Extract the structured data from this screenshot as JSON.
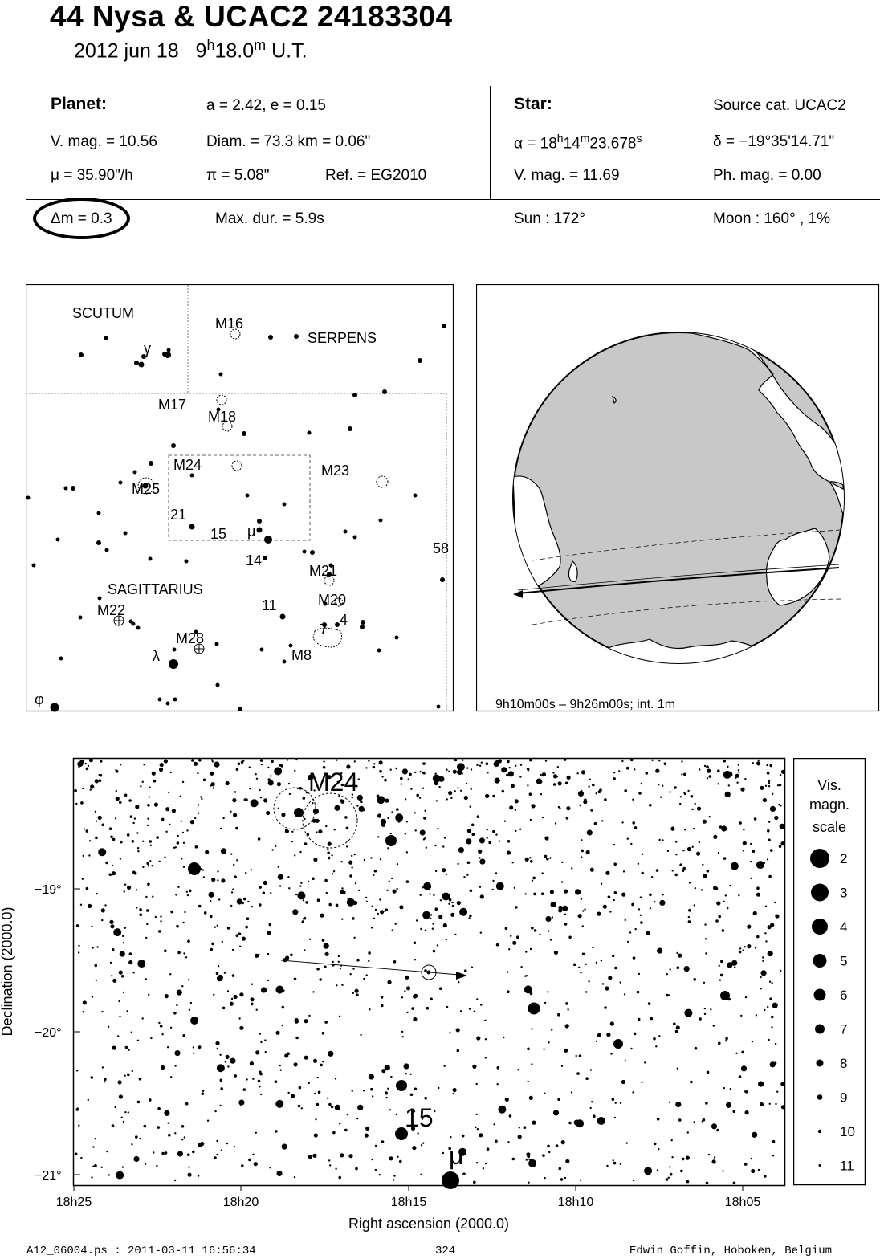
{
  "header": {
    "title": "44 Nysa  &  UCAC2 24183304",
    "date": "2012 jun 18",
    "time_h": "9",
    "time_h_unit": "h",
    "time_m": "18.0",
    "time_m_unit": "m",
    "time_suffix": "U.T."
  },
  "planet": {
    "label": "Planet:",
    "orbit": "a = 2.42, e = 0.15",
    "vmag": "V. mag. = 10.56",
    "diam": "Diam. = 73.3 km = 0.06\"",
    "mu": "μ =  35.90\"/h",
    "pi": "π =  5.08\"",
    "ref": "Ref. = EG2010"
  },
  "star": {
    "label": "Star:",
    "source": "Source cat.  UCAC2",
    "alpha_prefix": "α = 18",
    "alpha_h": "h",
    "alpha_mid": "14",
    "alpha_m": "m",
    "alpha_sec": "23.678",
    "alpha_s": "s",
    "delta": "δ = −19°35'14.71\"",
    "vmag": "V. mag. = 11.69",
    "phmag": "Ph. mag. =  0.00"
  },
  "event": {
    "dm": "Δm = 0.3",
    "maxdur": "Max. dur. = 5.9s",
    "sun": "Sun : 172°",
    "moon": "Moon : 160° ,  1%"
  },
  "finder": {
    "constellations": [
      "SCUTUM",
      "SERPENS",
      "SAGITTARIUS"
    ],
    "objects": [
      "M16",
      "M17",
      "M18",
      "M24",
      "M25",
      "M23",
      "M21",
      "M20",
      "M22",
      "M28",
      "M8"
    ],
    "star_labels": [
      "γ",
      "21",
      "15",
      "μ",
      "14",
      "11",
      "7",
      "4",
      "58",
      "λ",
      "φ"
    ]
  },
  "globe": {
    "caption": "9h10m00s –  9h26m00s; int.  1m"
  },
  "detail": {
    "xlabel": "Right ascension (2000.0)",
    "ylabel": "Declination (2000.0)",
    "xticks": [
      "18h25",
      "18h20",
      "18h15",
      "18h10",
      "18h05"
    ],
    "yticks": [
      "−19°",
      "−20°",
      "−21°"
    ],
    "labels": {
      "m24": "M24",
      "s15": "15",
      "mu": "μ"
    }
  },
  "scale": {
    "title_lines": [
      "Vis.",
      "magn.",
      "scale"
    ],
    "mags": [
      "2",
      "3",
      "4",
      "5",
      "6",
      "7",
      "8",
      "9",
      "10",
      "11"
    ]
  },
  "footer": {
    "left": "A12_06004.ps : 2011-03-11 16:56:34",
    "page": "324",
    "right": "Edwin Goffin, Hoboken, Belgium"
  }
}
